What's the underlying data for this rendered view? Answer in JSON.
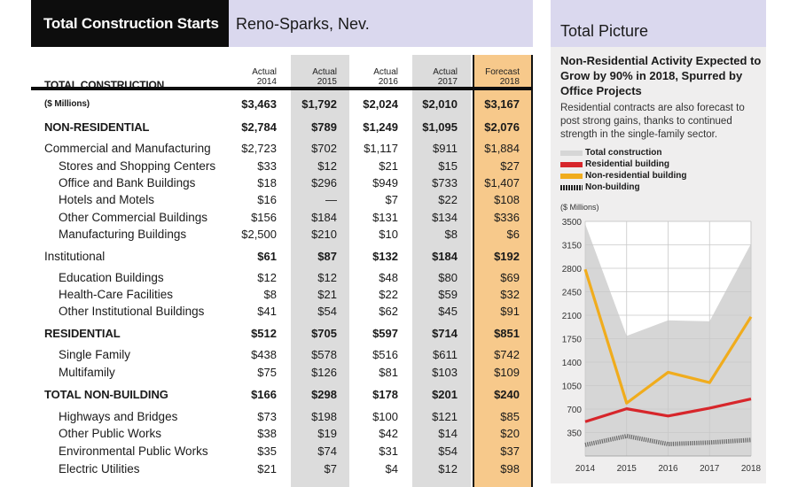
{
  "left": {
    "title": "Total Construction Starts",
    "location": "Reno-Sparks, Nev.",
    "total_label": "TOTAL CONSTRUCTION",
    "col_heads": [
      {
        "line1": "Actual",
        "line2": "2014"
      },
      {
        "line1": "Actual",
        "line2": "2015"
      },
      {
        "line1": "Actual",
        "line2": "2016"
      },
      {
        "line1": "Actual",
        "line2": "2017"
      },
      {
        "line1": "Forecast",
        "line2": "2018"
      }
    ],
    "rows": [
      {
        "label": "($ Millions)",
        "vals": [
          "$3,463",
          "$1,792",
          "$2,024",
          "$2,010",
          "$3,167"
        ]
      },
      {
        "label": "NON-RESIDENTIAL",
        "vals": [
          "$2,784",
          "$789",
          "$1,249",
          "$1,095",
          "$2,076"
        ]
      },
      {
        "label": "Commercial and Manufacturing",
        "vals": [
          "$2,723",
          "$702",
          "$1,117",
          "$911",
          "$1,884"
        ]
      },
      {
        "label": "Stores and Shopping Centers",
        "vals": [
          "$33",
          "$12",
          "$21",
          "$15",
          "$27"
        ]
      },
      {
        "label": "Office and Bank Buildings",
        "vals": [
          "$18",
          "$296",
          "$949",
          "$733",
          "$1,407"
        ]
      },
      {
        "label": "Hotels and Motels",
        "vals": [
          "$16",
          "—",
          "$7",
          "$22",
          "$108"
        ]
      },
      {
        "label": "Other Commercial Buildings",
        "vals": [
          "$156",
          "$184",
          "$131",
          "$134",
          "$336"
        ]
      },
      {
        "label": "Manufacturing Buildings",
        "vals": [
          "$2,500",
          "$210",
          "$10",
          "$8",
          "$6"
        ]
      },
      {
        "label": "Institutional",
        "vals": [
          "$61",
          "$87",
          "$132",
          "$184",
          "$192"
        ]
      },
      {
        "label": "Education Buildings",
        "vals": [
          "$12",
          "$12",
          "$48",
          "$80",
          "$69"
        ]
      },
      {
        "label": "Health-Care Facilities",
        "vals": [
          "$8",
          "$21",
          "$22",
          "$59",
          "$32"
        ]
      },
      {
        "label": "Other Institutional Buildings",
        "vals": [
          "$41",
          "$54",
          "$62",
          "$45",
          "$91"
        ]
      },
      {
        "label": "RESIDENTIAL",
        "vals": [
          "$512",
          "$705",
          "$597",
          "$714",
          "$851"
        ]
      },
      {
        "label": "Single Family",
        "vals": [
          "$438",
          "$578",
          "$516",
          "$611",
          "$742"
        ]
      },
      {
        "label": "Multifamily",
        "vals": [
          "$75",
          "$126",
          "$81",
          "$103",
          "$109"
        ]
      },
      {
        "label": "TOTAL NON-BUILDING",
        "vals": [
          "$166",
          "$298",
          "$178",
          "$201",
          "$240"
        ]
      },
      {
        "label": "Highways and Bridges",
        "vals": [
          "$73",
          "$198",
          "$100",
          "$121",
          "$85"
        ]
      },
      {
        "label": "Other Public Works",
        "vals": [
          "$38",
          "$19",
          "$42",
          "$14",
          "$20"
        ]
      },
      {
        "label": "Environmental Public Works",
        "vals": [
          "$35",
          "$74",
          "$31",
          "$54",
          "$37"
        ]
      },
      {
        "label": "Electric Utilities",
        "vals": [
          "$21",
          "$7",
          "$4",
          "$12",
          "$98"
        ]
      }
    ]
  },
  "right": {
    "title": "Total Picture",
    "headline": "Non-Residential Activity Expected to Grow by 90% in 2018, Spurred by Office Projects",
    "subtext": "Residential contracts are also forecast to post strong gains, thanks to continued strength in the single-family sector.",
    "units": "($ Millions)"
  },
  "chart_data": {
    "type": "line",
    "x": [
      "2014",
      "2015",
      "2016",
      "2017",
      "2018"
    ],
    "ylim": [
      0,
      3500
    ],
    "yticks": [
      350,
      700,
      1050,
      1400,
      1750,
      2100,
      2450,
      2800,
      3150,
      3500
    ],
    "legend_position": "top-left",
    "grid": true,
    "series": [
      {
        "name": "Total construction",
        "values": [
          3463,
          1792,
          2024,
          2010,
          3167
        ],
        "color": "#d6d6d6",
        "style": "area"
      },
      {
        "name": "Residential building",
        "values": [
          512,
          705,
          597,
          714,
          851
        ],
        "color": "#d7262b",
        "style": "line"
      },
      {
        "name": "Non-residential building",
        "values": [
          2784,
          789,
          1249,
          1095,
          2076
        ],
        "color": "#f0ac1d",
        "style": "line"
      },
      {
        "name": "Non-building",
        "values": [
          166,
          298,
          178,
          201,
          240
        ],
        "color": "#7a7a7a",
        "style": "hatched"
      }
    ]
  }
}
